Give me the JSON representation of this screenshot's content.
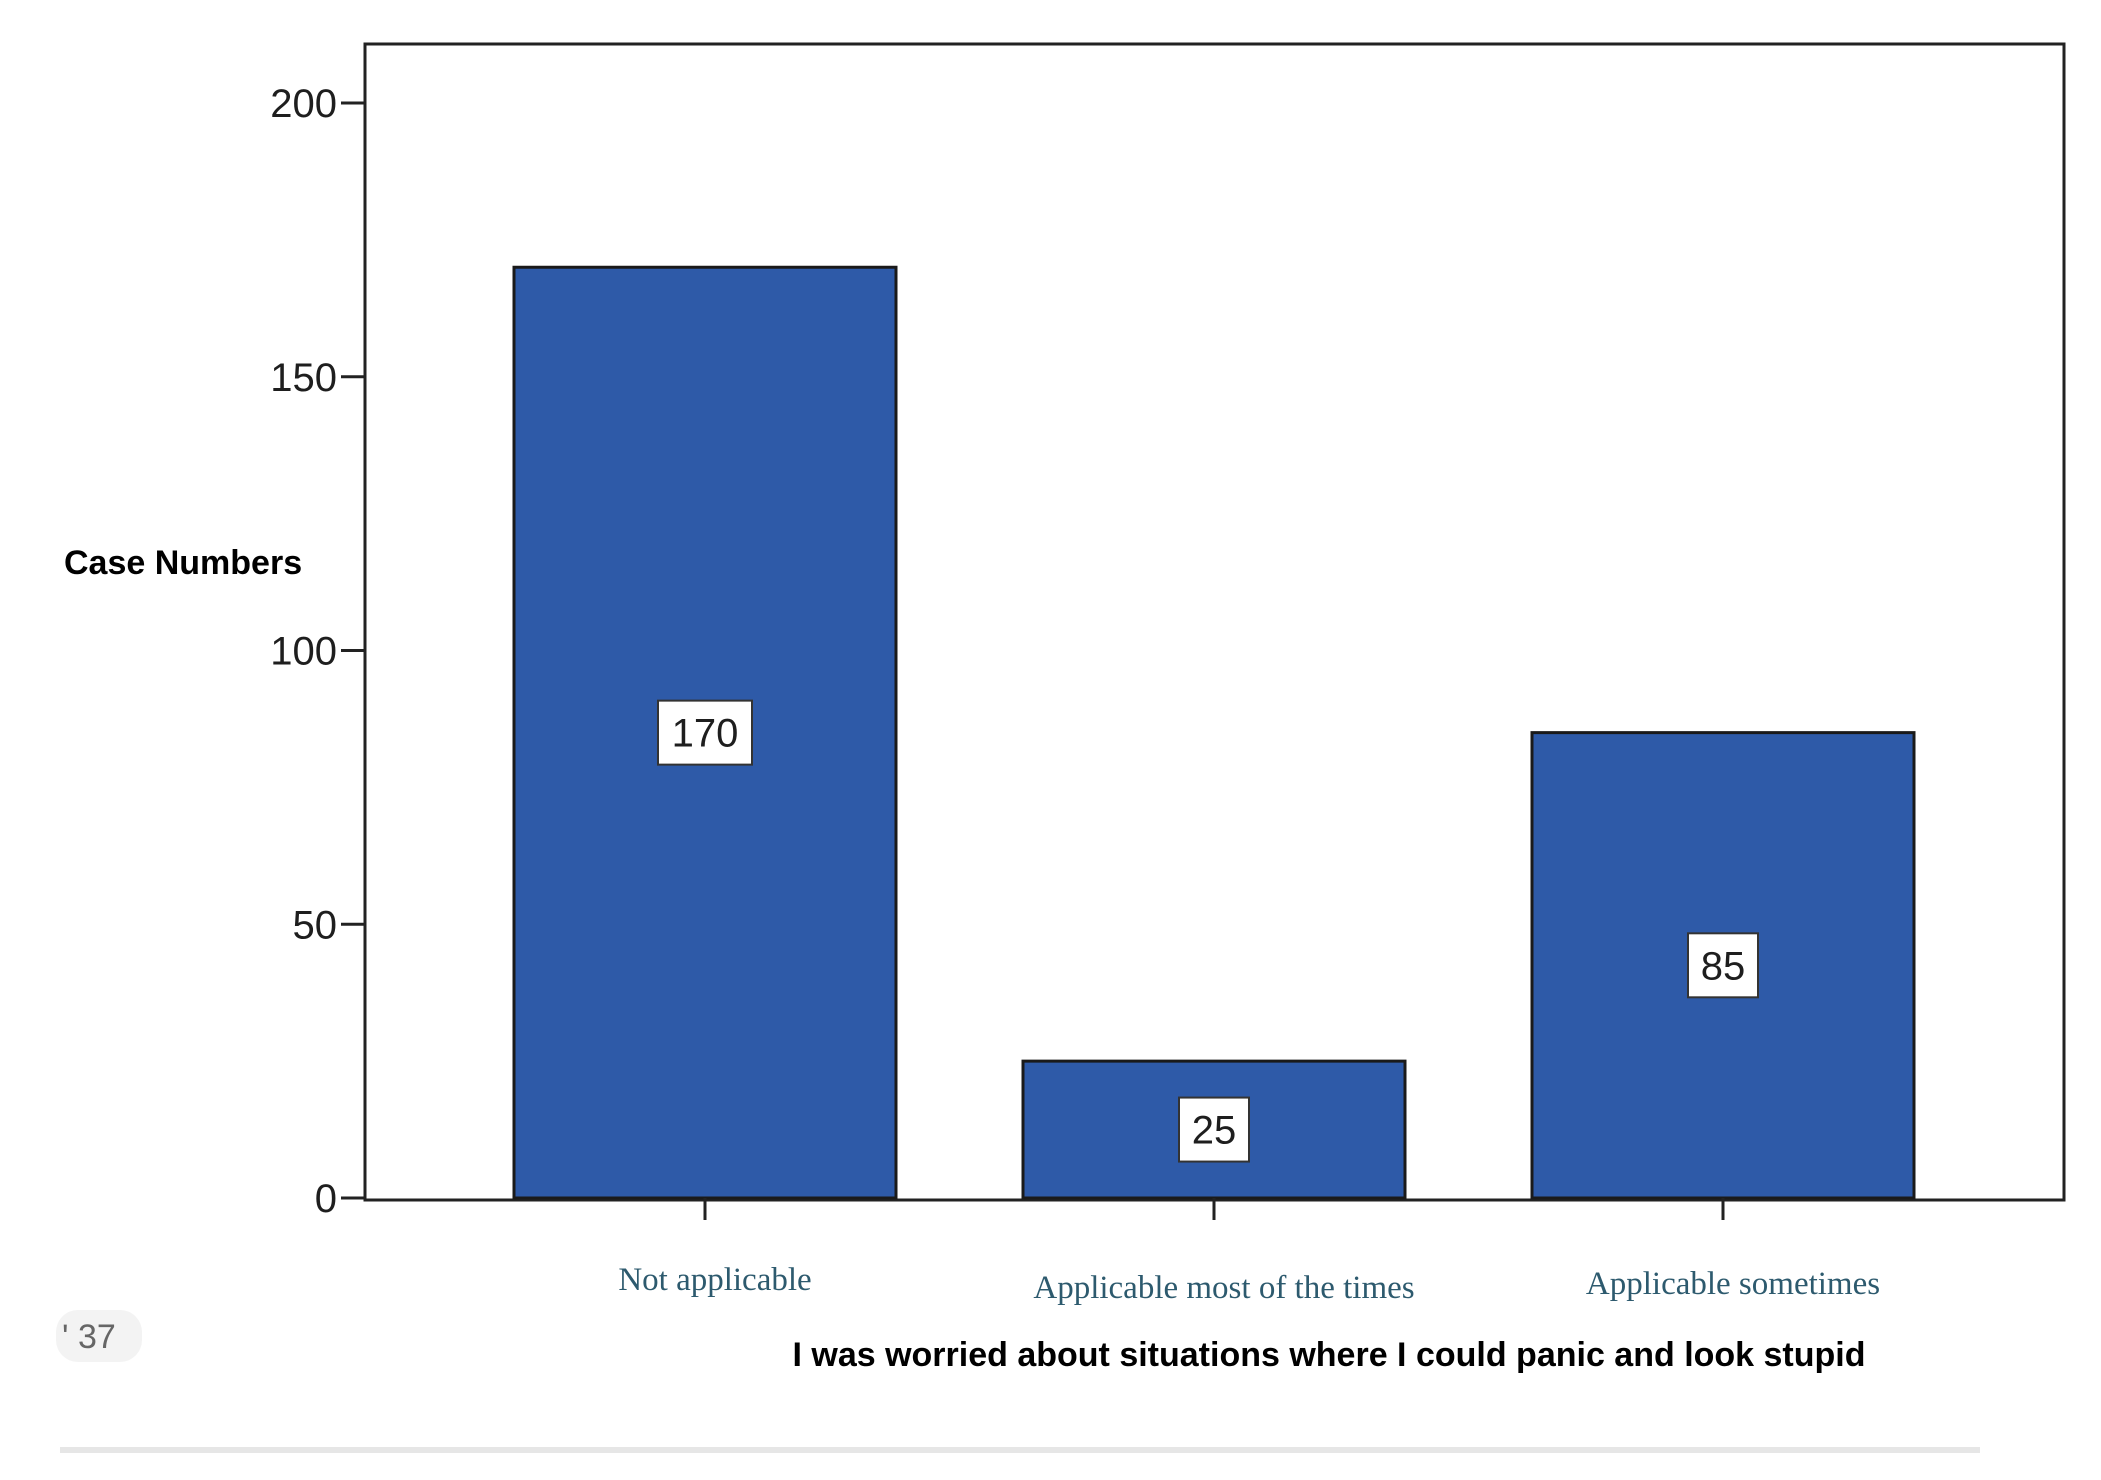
{
  "chart_data": {
    "type": "bar",
    "title": "",
    "ylabel": "Case Numbers",
    "xlabel": "I was worried about situations where I could panic and look stupid",
    "categories": [
      "Not applicable",
      "Applicable most of the times",
      "Applicable sometimes"
    ],
    "values": [
      170,
      25,
      85
    ],
    "data_labels": [
      "170",
      "25",
      "85"
    ],
    "ylim": [
      0,
      210
    ],
    "yticks": [
      0,
      50,
      100,
      150,
      200
    ],
    "ytick_labels": [
      "0",
      "50",
      "100",
      "150",
      "200"
    ],
    "grid": false,
    "legend": "none",
    "bar_color": "#2e5aa8",
    "bar_edge_color": "#1a1a1a"
  },
  "page_chip": {
    "label": "ʹ 37"
  }
}
